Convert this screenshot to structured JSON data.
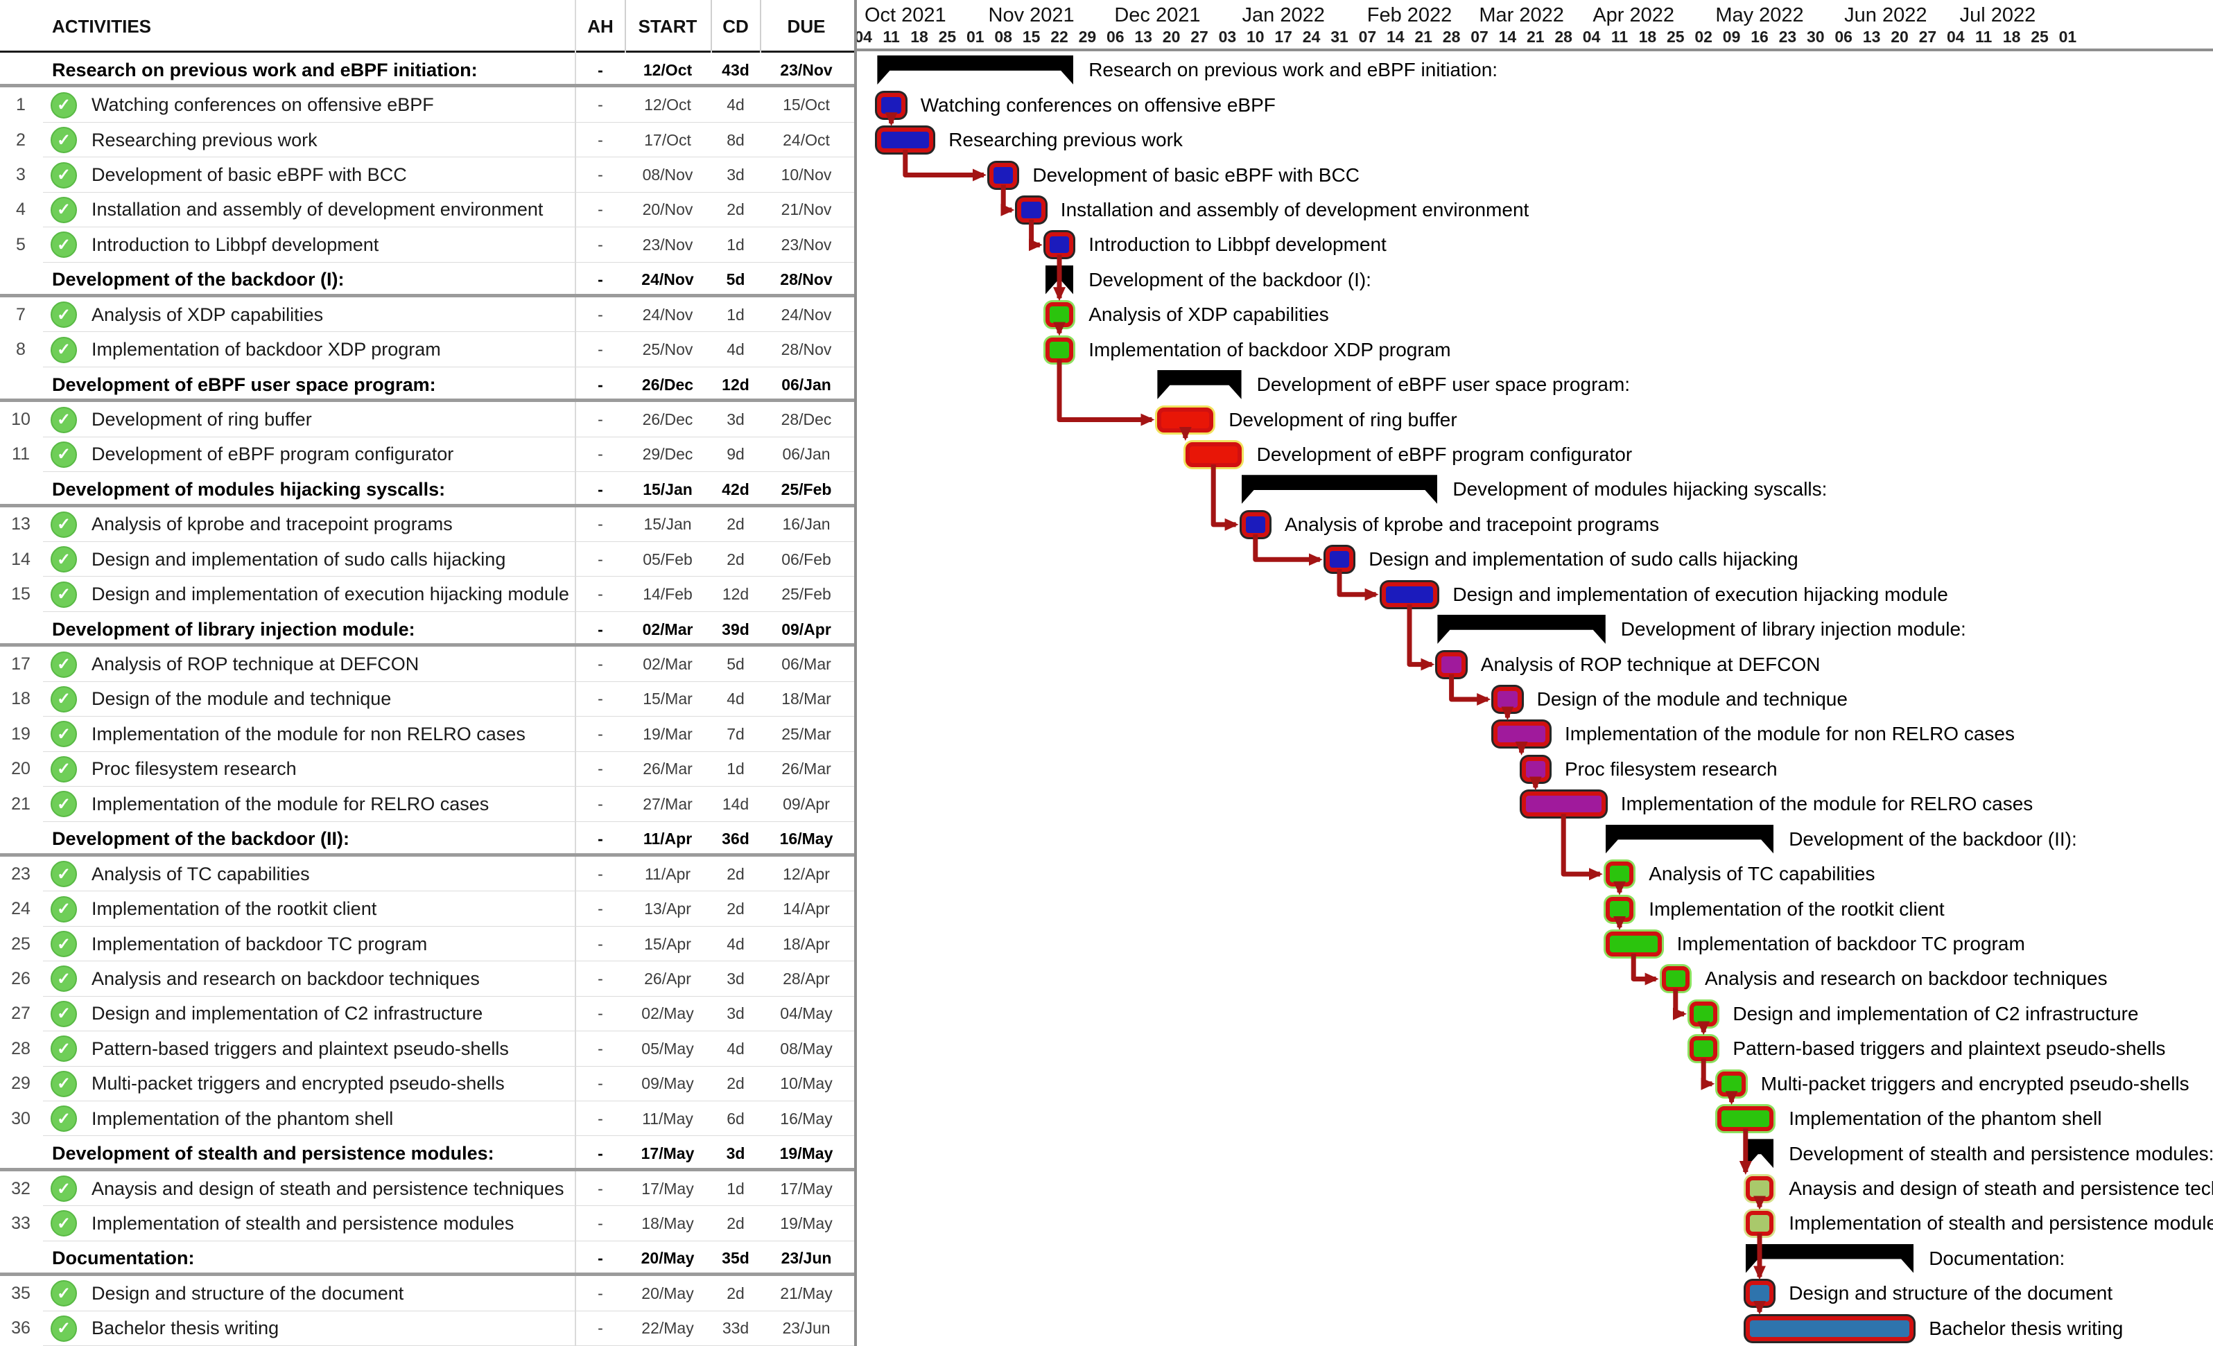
{
  "table": {
    "headers": {
      "activities": "ACTIVITIES",
      "ah": "AH",
      "start": "START",
      "cd": "CD",
      "due": "DUE"
    }
  },
  "colors": {
    "accent_border": "#d11010",
    "arrow": "#a31414",
    "summary": "#000000",
    "check_green": "#6fce58",
    "blue": "#1b1bbd",
    "green": "#2bc40d",
    "red": "#e81607",
    "purple": "#a01a9c",
    "olive": "#a9c96b",
    "steel": "#2e74ad",
    "outline_green": "#8ce05f",
    "outline_olive": "#d6e08a",
    "outline_red": "#f0e25e",
    "outline_dark": "rgba(0,0,0,0.85)"
  },
  "chart_data": {
    "type": "bar",
    "variant": "gantt-weekly",
    "title": "",
    "timeline": {
      "week_start_date": "04/Oct/2021",
      "months": [
        {
          "label": "Oct 2021",
          "ticks": [
            "04",
            "11",
            "18",
            "25"
          ]
        },
        {
          "label": "Nov 2021",
          "ticks": [
            "01",
            "08",
            "15",
            "22",
            "29"
          ]
        },
        {
          "label": "Dec 2021",
          "ticks": [
            "06",
            "13",
            "20",
            "27"
          ]
        },
        {
          "label": "Jan 2022",
          "ticks": [
            "03",
            "10",
            "17",
            "24",
            "31"
          ]
        },
        {
          "label": "Feb 2022",
          "ticks": [
            "07",
            "14",
            "21",
            "28"
          ]
        },
        {
          "label": "Mar 2022",
          "ticks": [
            "07",
            "14",
            "21",
            "28"
          ]
        },
        {
          "label": "Apr 2022",
          "ticks": [
            "04",
            "11",
            "18",
            "25"
          ]
        },
        {
          "label": "May 2022",
          "ticks": [
            "02",
            "09",
            "16",
            "23",
            "30"
          ]
        },
        {
          "label": "Jun 2022",
          "ticks": [
            "06",
            "13",
            "20",
            "27"
          ]
        },
        {
          "label": "Jul 2022",
          "ticks": [
            "04",
            "11",
            "18",
            "25"
          ]
        },
        {
          "label": "",
          "ticks": [
            "01"
          ]
        }
      ]
    },
    "tasks": [
      {
        "num": "",
        "type": "group",
        "label": "Research on previous work and eBPF initiation:",
        "ah": "-",
        "start": "12/Oct",
        "cd": "43d",
        "due": "23/Nov",
        "color": "summary"
      },
      {
        "num": "1",
        "type": "task",
        "label": "Watching conferences on offensive eBPF",
        "ah": "-",
        "start": "12/Oct",
        "cd": "4d",
        "due": "15/Oct",
        "color": "blue"
      },
      {
        "num": "2",
        "type": "task",
        "label": "Researching previous work",
        "ah": "-",
        "start": "17/Oct",
        "cd": "8d",
        "due": "24/Oct",
        "color": "blue"
      },
      {
        "num": "3",
        "type": "task",
        "label": "Development of basic eBPF with BCC",
        "ah": "-",
        "start": "08/Nov",
        "cd": "3d",
        "due": "10/Nov",
        "color": "blue"
      },
      {
        "num": "4",
        "type": "task",
        "label": "Installation and assembly of development environment",
        "ah": "-",
        "start": "20/Nov",
        "cd": "2d",
        "due": "21/Nov",
        "color": "blue"
      },
      {
        "num": "5",
        "type": "task",
        "label": "Introduction to Libbpf development",
        "ah": "-",
        "start": "23/Nov",
        "cd": "1d",
        "due": "23/Nov",
        "color": "blue"
      },
      {
        "num": "",
        "type": "group",
        "label": "Development of the backdoor (I):",
        "ah": "-",
        "start": "24/Nov",
        "cd": "5d",
        "due": "28/Nov",
        "color": "summary"
      },
      {
        "num": "7",
        "type": "task",
        "label": "Analysis of XDP capabilities",
        "ah": "-",
        "start": "24/Nov",
        "cd": "1d",
        "due": "24/Nov",
        "color": "green"
      },
      {
        "num": "8",
        "type": "task",
        "label": "Implementation of backdoor XDP program",
        "ah": "-",
        "start": "25/Nov",
        "cd": "4d",
        "due": "28/Nov",
        "color": "green"
      },
      {
        "num": "",
        "type": "group",
        "label": "Development of eBPF user space program:",
        "ah": "-",
        "start": "26/Dec",
        "cd": "12d",
        "due": "06/Jan",
        "color": "summary"
      },
      {
        "num": "10",
        "type": "task",
        "label": "Development of ring buffer",
        "ah": "-",
        "start": "26/Dec",
        "cd": "3d",
        "due": "28/Dec",
        "color": "red"
      },
      {
        "num": "11",
        "type": "task",
        "label": "Development of eBPF program configurator",
        "ah": "-",
        "start": "29/Dec",
        "cd": "9d",
        "due": "06/Jan",
        "color": "red"
      },
      {
        "num": "",
        "type": "group",
        "label": "Development of modules hijacking syscalls:",
        "ah": "-",
        "start": "15/Jan",
        "cd": "42d",
        "due": "25/Feb",
        "color": "summary"
      },
      {
        "num": "13",
        "type": "task",
        "label": "Analysis of kprobe and tracepoint programs",
        "ah": "-",
        "start": "15/Jan",
        "cd": "2d",
        "due": "16/Jan",
        "color": "blue"
      },
      {
        "num": "14",
        "type": "task",
        "label": "Design and implementation of sudo calls hijacking",
        "ah": "-",
        "start": "05/Feb",
        "cd": "2d",
        "due": "06/Feb",
        "color": "blue"
      },
      {
        "num": "15",
        "type": "task",
        "label": "Design and implementation of execution hijacking module",
        "ah": "-",
        "start": "14/Feb",
        "cd": "12d",
        "due": "25/Feb",
        "color": "blue"
      },
      {
        "num": "",
        "type": "group",
        "label": "Development of library injection module:",
        "ah": "-",
        "start": "02/Mar",
        "cd": "39d",
        "due": "09/Apr",
        "color": "summary"
      },
      {
        "num": "17",
        "type": "task",
        "label": "Analysis of ROP technique at DEFCON",
        "ah": "-",
        "start": "02/Mar",
        "cd": "5d",
        "due": "06/Mar",
        "color": "purple"
      },
      {
        "num": "18",
        "type": "task",
        "label": "Design of the module and technique",
        "ah": "-",
        "start": "15/Mar",
        "cd": "4d",
        "due": "18/Mar",
        "color": "purple"
      },
      {
        "num": "19",
        "type": "task",
        "label": "Implementation of the module for non RELRO cases",
        "ah": "-",
        "start": "19/Mar",
        "cd": "7d",
        "due": "25/Mar",
        "color": "purple"
      },
      {
        "num": "20",
        "type": "task",
        "label": "Proc filesystem research",
        "ah": "-",
        "start": "26/Mar",
        "cd": "1d",
        "due": "26/Mar",
        "color": "purple"
      },
      {
        "num": "21",
        "type": "task",
        "label": "Implementation of the module for RELRO cases",
        "ah": "-",
        "start": "27/Mar",
        "cd": "14d",
        "due": "09/Apr",
        "color": "purple"
      },
      {
        "num": "",
        "type": "group",
        "label": "Development of the backdoor (II):",
        "ah": "-",
        "start": "11/Apr",
        "cd": "36d",
        "due": "16/May",
        "color": "summary"
      },
      {
        "num": "23",
        "type": "task",
        "label": "Analysis of TC capabilities",
        "ah": "-",
        "start": "11/Apr",
        "cd": "2d",
        "due": "12/Apr",
        "color": "green"
      },
      {
        "num": "24",
        "type": "task",
        "label": "Implementation of the rootkit client",
        "ah": "-",
        "start": "13/Apr",
        "cd": "2d",
        "due": "14/Apr",
        "color": "green"
      },
      {
        "num": "25",
        "type": "task",
        "label": "Implementation of backdoor TC program",
        "ah": "-",
        "start": "15/Apr",
        "cd": "4d",
        "due": "18/Apr",
        "color": "green"
      },
      {
        "num": "26",
        "type": "task",
        "label": "Analysis and research on backdoor techniques",
        "ah": "-",
        "start": "26/Apr",
        "cd": "3d",
        "due": "28/Apr",
        "color": "green"
      },
      {
        "num": "27",
        "type": "task",
        "label": "Design and implementation of C2 infrastructure",
        "ah": "-",
        "start": "02/May",
        "cd": "3d",
        "due": "04/May",
        "color": "green"
      },
      {
        "num": "28",
        "type": "task",
        "label": "Pattern-based triggers and plaintext pseudo-shells",
        "ah": "-",
        "start": "05/May",
        "cd": "4d",
        "due": "08/May",
        "color": "green"
      },
      {
        "num": "29",
        "type": "task",
        "label": "Multi-packet triggers and encrypted pseudo-shells",
        "ah": "-",
        "start": "09/May",
        "cd": "2d",
        "due": "10/May",
        "color": "green"
      },
      {
        "num": "30",
        "type": "task",
        "label": "Implementation of the phantom shell",
        "ah": "-",
        "start": "11/May",
        "cd": "6d",
        "due": "16/May",
        "color": "green"
      },
      {
        "num": "",
        "type": "group",
        "label": "Development of stealth and persistence modules:",
        "ah": "-",
        "start": "17/May",
        "cd": "3d",
        "due": "19/May",
        "color": "summary"
      },
      {
        "num": "32",
        "type": "task",
        "label": "Anaysis and design of steath and persistence techniques",
        "ah": "-",
        "start": "17/May",
        "cd": "1d",
        "due": "17/May",
        "color": "olive"
      },
      {
        "num": "33",
        "type": "task",
        "label": "Implementation of stealth and persistence modules",
        "ah": "-",
        "start": "18/May",
        "cd": "2d",
        "due": "19/May",
        "color": "olive"
      },
      {
        "num": "",
        "type": "group",
        "label": "Documentation:",
        "ah": "-",
        "start": "20/May",
        "cd": "35d",
        "due": "23/Jun",
        "color": "summary"
      },
      {
        "num": "35",
        "type": "task",
        "label": "Design and structure of the document",
        "ah": "-",
        "start": "20/May",
        "cd": "2d",
        "due": "21/May",
        "color": "steel"
      },
      {
        "num": "36",
        "type": "task",
        "label": "Bachelor thesis writing",
        "ah": "-",
        "start": "22/May",
        "cd": "33d",
        "due": "23/Jun",
        "color": "steel"
      }
    ],
    "links": [
      [
        1,
        2
      ],
      [
        2,
        3
      ],
      [
        3,
        4
      ],
      [
        4,
        5
      ],
      [
        5,
        7
      ],
      [
        7,
        8
      ],
      [
        8,
        10
      ],
      [
        10,
        11
      ],
      [
        11,
        13
      ],
      [
        13,
        14
      ],
      [
        14,
        15
      ],
      [
        15,
        17
      ],
      [
        17,
        18
      ],
      [
        18,
        19
      ],
      [
        19,
        20
      ],
      [
        20,
        21
      ],
      [
        21,
        23
      ],
      [
        23,
        24
      ],
      [
        24,
        25
      ],
      [
        25,
        26
      ],
      [
        26,
        27
      ],
      [
        27,
        28
      ],
      [
        28,
        29
      ],
      [
        29,
        30
      ],
      [
        30,
        32
      ],
      [
        32,
        33
      ],
      [
        33,
        35
      ],
      [
        35,
        36
      ]
    ]
  }
}
